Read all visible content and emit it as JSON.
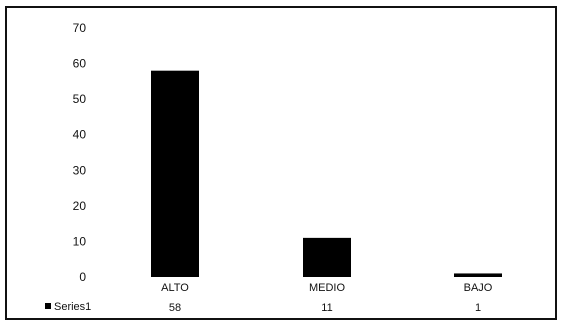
{
  "chart_data": {
    "type": "bar",
    "categories": [
      "ALTO",
      "MEDIO",
      "BAJO"
    ],
    "series": [
      {
        "name": "Series1",
        "values": [
          58,
          11,
          1
        ]
      }
    ],
    "ylim": [
      0,
      70
    ],
    "yticks": [
      0,
      10,
      20,
      30,
      40,
      50,
      60,
      70
    ],
    "grid": false,
    "legend": "data-table-below",
    "colors": {
      "bar": "#000000",
      "frame": "#111111"
    }
  }
}
